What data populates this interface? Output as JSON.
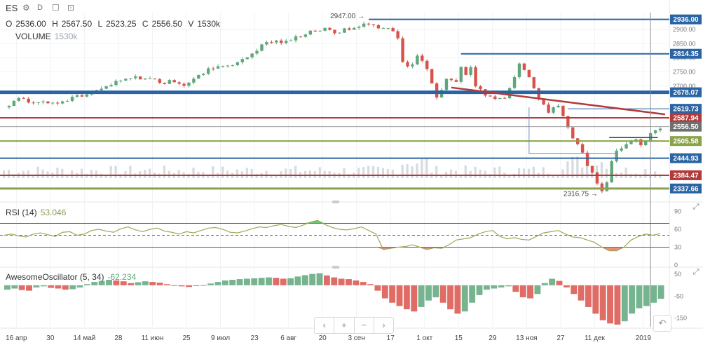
{
  "header": {
    "symbol": "ES",
    "interval": "D",
    "ohlc": [
      {
        "k": "O",
        "v": "2536.00"
      },
      {
        "k": "H",
        "v": "2567.50"
      },
      {
        "k": "L",
        "v": "2523.25"
      },
      {
        "k": "C",
        "v": "2556.50"
      },
      {
        "k": "V",
        "v": "1530k"
      }
    ],
    "volume_label": "VOLUME",
    "volume_value": "1530k",
    "icons": {
      "settings": "gear-icon",
      "interval": "d-icon",
      "fullscreen": "square-icon"
    }
  },
  "colors": {
    "up": "#5ea77c",
    "down": "#d9524a",
    "blue_line": "#2b64a4",
    "red_line": "#b33a3a",
    "green_line": "#8aa24a",
    "rsi": "#a2a555",
    "volume": "#d7dbe0"
  },
  "chart_data": [
    {
      "type": "candlestick",
      "name": "ES",
      "ylim": [
        2300,
        2960
      ],
      "y_ticks": [
        2900,
        2850,
        2800,
        2750,
        2700
      ],
      "y_tick_labels": [
        "2900.00",
        "2850.00",
        "2800.00",
        "2750.00",
        "2700.00"
      ],
      "x_labels": [
        "16 апр",
        "30",
        "14 май",
        "28",
        "11 июн",
        "25",
        "9 июл",
        "23",
        "6 авг",
        "20",
        "3 сен",
        "17",
        "1 окт",
        "15",
        "29",
        "13 ноя",
        "27",
        "11 дек",
        "2019"
      ],
      "close_path": [
        [
          0,
          2625
        ],
        [
          6,
          2660
        ],
        [
          10,
          2645
        ],
        [
          16,
          2650
        ],
        [
          22,
          2638
        ],
        [
          28,
          2660
        ],
        [
          34,
          2665
        ],
        [
          40,
          2690
        ],
        [
          46,
          2712
        ],
        [
          52,
          2728
        ],
        [
          56,
          2730
        ],
        [
          62,
          2722
        ],
        [
          66,
          2710
        ],
        [
          70,
          2720
        ],
        [
          74,
          2705
        ],
        [
          80,
          2735
        ],
        [
          86,
          2768
        ],
        [
          92,
          2775
        ],
        [
          98,
          2790
        ],
        [
          104,
          2830
        ],
        [
          108,
          2855
        ],
        [
          112,
          2858
        ],
        [
          116,
          2855
        ],
        [
          122,
          2880
        ],
        [
          126,
          2895
        ],
        [
          132,
          2900
        ],
        [
          136,
          2890
        ],
        [
          140,
          2898
        ],
        [
          144,
          2905
        ],
        [
          146,
          2915
        ],
        [
          150,
          2918
        ],
        [
          154,
          2910
        ],
        [
          157,
          2905
        ],
        [
          160,
          2895
        ],
        [
          162,
          2870
        ],
        [
          164,
          2780
        ],
        [
          167,
          2770
        ],
        [
          170,
          2810
        ],
        [
          174,
          2760
        ],
        [
          176,
          2710
        ],
        [
          178,
          2660
        ],
        [
          180,
          2690
        ],
        [
          182,
          2725
        ],
        [
          186,
          2715
        ],
        [
          188,
          2775
        ],
        [
          190,
          2740
        ],
        [
          192,
          2765
        ],
        [
          194,
          2705
        ],
        [
          196,
          2690
        ],
        [
          198,
          2660
        ],
        [
          200,
          2668
        ],
        [
          202,
          2650
        ],
        [
          206,
          2656
        ],
        [
          208,
          2700
        ],
        [
          210,
          2730
        ],
        [
          212,
          2778
        ],
        [
          214,
          2760
        ],
        [
          216,
          2730
        ],
        [
          218,
          2690
        ],
        [
          220,
          2660
        ],
        [
          222,
          2640
        ],
        [
          224,
          2612
        ],
        [
          226,
          2625
        ],
        [
          228,
          2630
        ],
        [
          230,
          2600
        ],
        [
          232,
          2560
        ],
        [
          234,
          2520
        ],
        [
          236,
          2500
        ],
        [
          238,
          2470
        ],
        [
          240,
          2420
        ],
        [
          242,
          2395
        ],
        [
          244,
          2350
        ],
        [
          246,
          2330
        ],
        [
          248,
          2360
        ],
        [
          250,
          2430
        ],
        [
          252,
          2470
        ],
        [
          254,
          2480
        ],
        [
          256,
          2500
        ],
        [
          258,
          2505
        ],
        [
          260,
          2508
        ],
        [
          262,
          2495
        ],
        [
          264,
          2510
        ],
        [
          266,
          2530
        ],
        [
          268,
          2545
        ],
        [
          270,
          2556.5
        ]
      ],
      "levels": [
        {
          "value": 2936.0,
          "label": "2936.00",
          "color": "#2b64a4",
          "width": 2,
          "box": "#2b64a4"
        },
        {
          "value": 2814.35,
          "label": "2814.35",
          "color": "#2b64a4",
          "width": 2,
          "box": "#2b64a4"
        },
        {
          "value": 2678.07,
          "label": "2678.07",
          "color": "#2b64a4",
          "width": 5,
          "box": "#2b64a4"
        },
        {
          "value": 2619.73,
          "label": "2619.73",
          "color": "#2b64a4",
          "width": 1,
          "box": "#2b64a4"
        },
        {
          "value": 2587.94,
          "label": "2587.94",
          "color": "#b33a3a",
          "width": 2,
          "box": "#b33a3a"
        },
        {
          "value": 2556.5,
          "label": "2556.50",
          "color": "#999999",
          "width": 1,
          "box": "#707070"
        },
        {
          "value": 2505.58,
          "label": "2505.58",
          "color": "#8aa24a",
          "width": 2,
          "box": "#8aa24a"
        },
        {
          "value": 2444.93,
          "label": "2444.93",
          "color": "#2b64a4",
          "width": 2,
          "box": "#2b64a4"
        },
        {
          "value": 2384.47,
          "label": "2384.47",
          "color": "#b33a3a",
          "width": 2,
          "box": "#b33a3a"
        },
        {
          "value": 2337.66,
          "label": "2337.66",
          "color": "#8aa24a",
          "width": 3,
          "box": "#2b64a4"
        }
      ],
      "annotations": [
        {
          "text": "2947.00",
          "x": 150,
          "y": 2947
        },
        {
          "text": "2316.75",
          "x": 246,
          "y": 2318
        }
      ],
      "trendline": {
        "from": [
          184,
          2695
        ],
        "to": [
          272,
          2600
        ]
      }
    },
    {
      "type": "line",
      "name": "RSI (14)",
      "value_label": "53.046",
      "ylim": [
        0,
        100
      ],
      "y_ticks": [
        90,
        60,
        30,
        0
      ],
      "bands": [
        70,
        50,
        30
      ],
      "values": [
        50,
        52,
        49,
        47,
        52,
        54,
        51,
        48,
        55,
        56,
        50,
        52,
        58,
        60,
        57,
        55,
        61,
        64,
        59,
        56,
        60,
        62,
        57,
        55,
        52,
        56,
        54,
        58,
        62,
        63,
        60,
        55,
        54,
        57,
        61,
        64,
        63,
        66,
        68,
        65,
        63,
        67,
        72,
        75,
        68,
        63,
        60,
        59,
        61,
        64,
        58,
        52,
        26,
        28,
        30,
        31,
        34,
        30,
        26,
        29,
        28,
        34,
        42,
        44,
        46,
        52,
        56,
        58,
        48,
        44,
        46,
        43,
        42,
        48,
        54,
        56,
        58,
        52,
        47,
        46,
        42,
        38,
        30,
        24,
        24,
        30,
        42,
        48,
        52,
        50,
        53.05
      ]
    },
    {
      "type": "bar",
      "name": "AwesomeOscillator (5, 34)",
      "value_label": "-62.234",
      "ylim": [
        -190,
        70
      ],
      "y_ticks": [
        50,
        -50,
        -150
      ],
      "values": [
        -20,
        -15,
        -22,
        -25,
        -10,
        -5,
        -12,
        -15,
        -20,
        -18,
        -10,
        5,
        15,
        20,
        25,
        22,
        18,
        10,
        14,
        18,
        15,
        12,
        5,
        -2,
        -5,
        -8,
        -4,
        0,
        8,
        15,
        22,
        25,
        28,
        30,
        32,
        34,
        36,
        34,
        30,
        32,
        40,
        46,
        52,
        55,
        45,
        36,
        30,
        28,
        22,
        15,
        5,
        -25,
        -60,
        -80,
        -95,
        -110,
        -120,
        -100,
        -70,
        -55,
        -80,
        -110,
        -130,
        -120,
        -80,
        -45,
        -20,
        -15,
        -10,
        -5,
        -30,
        -55,
        -60,
        -40,
        10,
        30,
        20,
        -10,
        -40,
        -70,
        -100,
        -130,
        -160,
        -175,
        -180,
        -165,
        -130,
        -105,
        -95,
        -80,
        -62.2
      ]
    }
  ],
  "controls": {
    "zoom_labels": [
      "‹",
      "+",
      "−",
      "›"
    ],
    "undo_label": "↶"
  }
}
